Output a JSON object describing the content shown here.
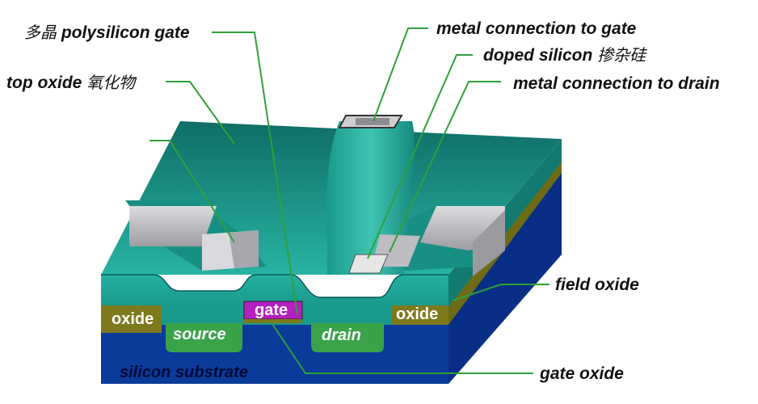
{
  "callouts": {
    "poly_gate_cn": "多晶",
    "poly_gate": "polysilicon gate",
    "top_oxide": "top oxide",
    "top_oxide_cn": "氧化物",
    "metal_gate": "metal connection to gate",
    "doped_silicon": "doped silicon",
    "doped_silicon_cn": "掺杂硅",
    "metal_drain": "metal connection to drain",
    "field_oxide": "field oxide",
    "gate_oxide": "gate oxide"
  },
  "regions": {
    "oxide_left": "oxide",
    "oxide_right": "oxide",
    "source": "source",
    "drain": "drain",
    "gate": "gate",
    "substrate": "silicon substrate"
  },
  "colors": {
    "teal": "#1fa89a",
    "teal_dark": "#0f6e66",
    "substrate": "#0a3a9a",
    "field_oxide": "#7d7a1e",
    "diffusion": "#3aa34a",
    "gate": "#b41fc0",
    "metal": "#c9c9cc"
  }
}
